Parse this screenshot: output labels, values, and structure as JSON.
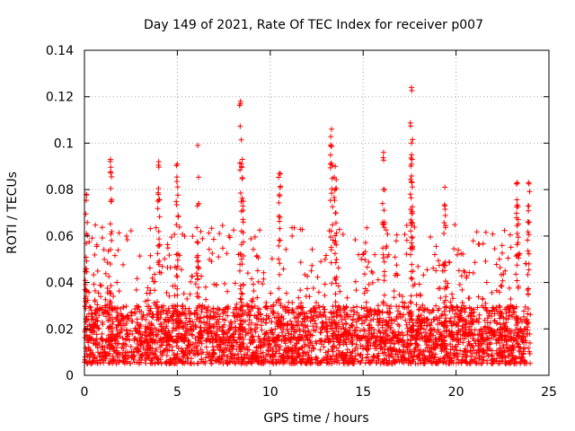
{
  "chart_data": {
    "type": "scatter",
    "title": "Day 149 of 2021, Rate Of TEC Index for receiver p007",
    "xlabel": "GPS time / hours",
    "ylabel": "ROTI / TECUs",
    "xlim": [
      0,
      25
    ],
    "ylim": [
      0,
      0.14
    ],
    "x_ticks": [
      0,
      5,
      10,
      15,
      20,
      25
    ],
    "x_tick_labels": [
      "0",
      "5",
      "10",
      "15",
      "20",
      "25"
    ],
    "y_ticks": [
      0,
      0.02,
      0.04,
      0.06,
      0.08,
      0.1,
      0.12,
      0.14
    ],
    "y_tick_labels": [
      "0",
      "0.02",
      "0.04",
      "0.06",
      "0.08",
      "0.1",
      "0.12",
      "0.14"
    ],
    "grid": true,
    "marker": "plus",
    "marker_color": "#ff0000",
    "series": [
      {
        "name": "ROTI",
        "x_range_hours": [
          0,
          24
        ],
        "baseline_band": [
          0.005,
          0.03
        ],
        "notable_peaks": [
          {
            "x": 0.1,
            "y": 0.078
          },
          {
            "x": 1.4,
            "y": 0.093
          },
          {
            "x": 4.0,
            "y": 0.092
          },
          {
            "x": 5.0,
            "y": 0.091
          },
          {
            "x": 6.1,
            "y": 0.099
          },
          {
            "x": 8.4,
            "y": 0.118
          },
          {
            "x": 8.5,
            "y": 0.093
          },
          {
            "x": 10.5,
            "y": 0.087
          },
          {
            "x": 13.3,
            "y": 0.106
          },
          {
            "x": 13.5,
            "y": 0.09
          },
          {
            "x": 16.1,
            "y": 0.096
          },
          {
            "x": 17.6,
            "y": 0.124
          },
          {
            "x": 17.6,
            "y": 0.091
          },
          {
            "x": 19.4,
            "y": 0.081
          },
          {
            "x": 23.3,
            "y": 0.083
          },
          {
            "x": 23.9,
            "y": 0.083
          }
        ]
      }
    ]
  }
}
